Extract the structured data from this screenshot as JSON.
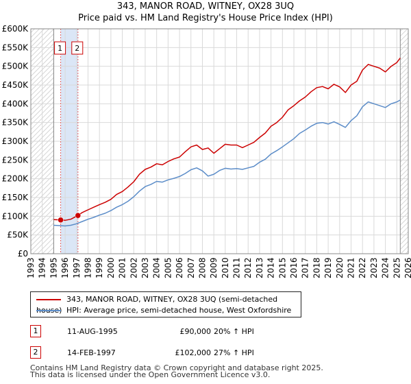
{
  "header": {
    "title": "343, MANOR ROAD, WITNEY, OX28 3UQ",
    "subtitle": "Price paid vs. HM Land Registry's House Price Index (HPI)"
  },
  "legend": {
    "items": [
      {
        "label": "343, MANOR ROAD, WITNEY, OX28 3UQ (semi-detached house)",
        "color": "#cc0000"
      },
      {
        "label": "HPI: Average price, semi-detached house, West Oxfordshire",
        "color": "#5b8cc8"
      }
    ]
  },
  "transactions": [
    {
      "id": "1",
      "date": "11-AUG-1995",
      "price": "£90,000",
      "hpi": "20% ↑ HPI"
    },
    {
      "id": "2",
      "date": "14-FEB-1997",
      "price": "£102,000",
      "hpi": "27% ↑ HPI"
    }
  ],
  "footer": {
    "line1": "Contains HM Land Registry data © Crown copyright and database right 2025.",
    "line2": "This data is licensed under the Open Government Licence v3.0."
  },
  "chart_data": {
    "type": "line",
    "title": "343, MANOR ROAD, WITNEY, OX28 3UQ",
    "subtitle": "Price paid vs. HM Land Registry's House Price Index (HPI)",
    "xlim": [
      1993,
      2026
    ],
    "ylim": [
      0,
      600000
    ],
    "x_ticks": [
      1993,
      1994,
      1995,
      1996,
      1997,
      1998,
      1999,
      2000,
      2001,
      2002,
      2003,
      2004,
      2005,
      2006,
      2007,
      2008,
      2009,
      2010,
      2011,
      2012,
      2013,
      2014,
      2015,
      2016,
      2017,
      2018,
      2019,
      2020,
      2021,
      2022,
      2023,
      2024,
      2025,
      2026
    ],
    "y_ticks": [
      0,
      50000,
      100000,
      150000,
      200000,
      250000,
      300000,
      350000,
      400000,
      450000,
      500000,
      550000,
      600000
    ],
    "y_tick_labels": [
      "£0",
      "£50K",
      "£100K",
      "£150K",
      "£200K",
      "£250K",
      "£300K",
      "£350K",
      "£400K",
      "£450K",
      "£500K",
      "£550K",
      "£600K"
    ],
    "grid": true,
    "shaded_region": {
      "x_start": 1995.61,
      "x_end": 1997.12,
      "color": "#dbe6f6"
    },
    "hatched_ranges": [
      [
        1993,
        1995.0
      ],
      [
        2025.3,
        2026
      ]
    ],
    "vlines": [
      {
        "x": 1995.61,
        "label": "1",
        "color": "#e06060"
      },
      {
        "x": 1997.12,
        "label": "2",
        "color": "#e06060"
      }
    ],
    "points": [
      {
        "x": 1995.61,
        "y": 90000,
        "label": "1"
      },
      {
        "x": 1997.12,
        "y": 102000,
        "label": "2"
      }
    ],
    "series": [
      {
        "name": "343, MANOR ROAD, WITNEY, OX28 3UQ (semi-detached house)",
        "color": "#cc0000",
        "x": [
          1995.0,
          1995.61,
          1996.0,
          1996.5,
          1997.12,
          1997.5,
          1998.0,
          1998.5,
          1999.0,
          1999.5,
          2000.0,
          2000.5,
          2001.0,
          2001.5,
          2002.0,
          2002.5,
          2003.0,
          2003.5,
          2004.0,
          2004.5,
          2005.0,
          2005.5,
          2006.0,
          2006.5,
          2007.0,
          2007.5,
          2008.0,
          2008.5,
          2009.0,
          2009.5,
          2010.0,
          2010.5,
          2011.0,
          2011.5,
          2012.0,
          2012.5,
          2013.0,
          2013.5,
          2014.0,
          2014.5,
          2015.0,
          2015.5,
          2016.0,
          2016.5,
          2017.0,
          2017.5,
          2018.0,
          2018.5,
          2019.0,
          2019.5,
          2020.0,
          2020.5,
          2021.0,
          2021.5,
          2022.0,
          2022.5,
          2023.0,
          2023.5,
          2024.0,
          2024.5,
          2025.0,
          2025.3
        ],
        "y": [
          91000,
          90000,
          89000,
          92000,
          102000,
          110000,
          117000,
          124000,
          131000,
          137000,
          145000,
          158000,
          166000,
          178000,
          192000,
          212000,
          225000,
          231000,
          240000,
          237000,
          246000,
          253000,
          258000,
          272000,
          285000,
          290000,
          278000,
          282000,
          268000,
          280000,
          292000,
          290000,
          290000,
          283000,
          290000,
          297000,
          310000,
          322000,
          340000,
          350000,
          364000,
          384000,
          395000,
          408000,
          418000,
          432000,
          443000,
          446000,
          440000,
          452000,
          445000,
          430000,
          450000,
          460000,
          490000,
          505000,
          500000,
          495000,
          485000,
          500000,
          510000,
          522000
        ]
      },
      {
        "name": "HPI: Average price, semi-detached house, West Oxfordshire",
        "color": "#5b8cc8",
        "x": [
          1995.0,
          1995.5,
          1996.0,
          1996.5,
          1997.0,
          1997.5,
          1998.0,
          1998.5,
          1999.0,
          1999.5,
          2000.0,
          2000.5,
          2001.0,
          2001.5,
          2002.0,
          2002.5,
          2003.0,
          2003.5,
          2004.0,
          2004.5,
          2005.0,
          2005.5,
          2006.0,
          2006.5,
          2007.0,
          2007.5,
          2008.0,
          2008.5,
          2009.0,
          2009.5,
          2010.0,
          2010.5,
          2011.0,
          2011.5,
          2012.0,
          2012.5,
          2013.0,
          2013.5,
          2014.0,
          2014.5,
          2015.0,
          2015.5,
          2016.0,
          2016.5,
          2017.0,
          2017.5,
          2018.0,
          2018.5,
          2019.0,
          2019.5,
          2020.0,
          2020.5,
          2021.0,
          2021.5,
          2022.0,
          2022.5,
          2023.0,
          2023.5,
          2024.0,
          2024.5,
          2025.0,
          2025.3
        ],
        "y": [
          76000,
          75000,
          74000,
          76000,
          80000,
          86000,
          92000,
          97000,
          103000,
          108000,
          115000,
          124000,
          131000,
          140000,
          152000,
          167000,
          179000,
          185000,
          193000,
          191000,
          197000,
          201000,
          206000,
          214000,
          224000,
          229000,
          221000,
          207000,
          212000,
          222000,
          228000,
          226000,
          227000,
          225000,
          229000,
          233000,
          244000,
          252000,
          266000,
          275000,
          285000,
          296000,
          307000,
          321000,
          330000,
          340000,
          348000,
          350000,
          346000,
          352000,
          345000,
          337000,
          355000,
          368000,
          392000,
          405000,
          400000,
          395000,
          390000,
          400000,
          405000,
          410000
        ]
      }
    ]
  }
}
